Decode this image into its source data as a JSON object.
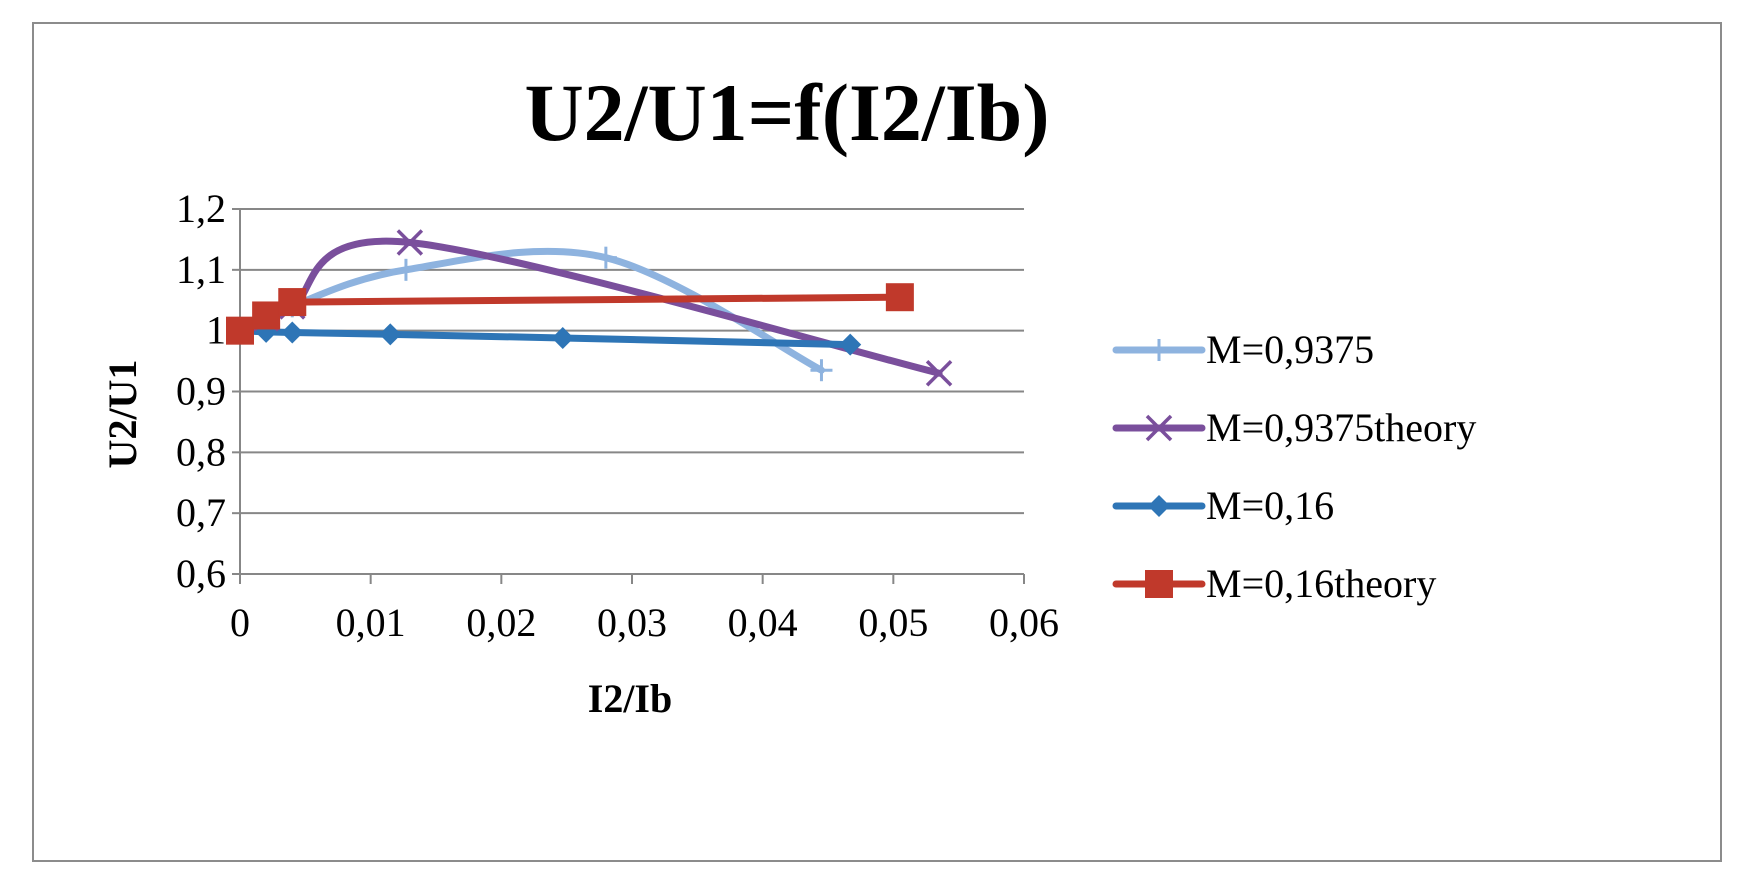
{
  "chart_data": {
    "type": "line",
    "title": "U2/U1=f(I2/Ib)",
    "xlabel": "I2/Ib",
    "ylabel": "U2/U1",
    "xlim": [
      0,
      0.06
    ],
    "ylim": [
      0.6,
      1.2
    ],
    "x_ticks": [
      "0",
      "0,01",
      "0,02",
      "0,03",
      "0,04",
      "0,05",
      "0,06"
    ],
    "y_ticks": [
      "0,6",
      "0,7",
      "0,8",
      "0,9",
      "1",
      "1,1",
      "1,2"
    ],
    "grid": true,
    "legend_position": "right",
    "series": [
      {
        "name": "M=0,9375",
        "color": "#8eb3df",
        "marker": "plus",
        "smooth": true,
        "points": [
          [
            0,
            1.0
          ],
          [
            0.002,
            1.01
          ],
          [
            0.004,
            1.04
          ],
          [
            0.0127,
            1.1
          ],
          [
            0.028,
            1.12
          ],
          [
            0.0445,
            0.935
          ]
        ]
      },
      {
        "name": "M=0,9375theory",
        "color": "#7a4f9c",
        "marker": "x",
        "smooth": true,
        "points": [
          [
            0,
            1.0
          ],
          [
            0.002,
            1.02
          ],
          [
            0.004,
            1.04
          ],
          [
            0.013,
            1.145
          ],
          [
            0.0535,
            0.93
          ]
        ]
      },
      {
        "name": "M=0,16",
        "color": "#2e75b6",
        "marker": "diamond",
        "smooth": false,
        "points": [
          [
            0,
            1.0
          ],
          [
            0.002,
            0.998
          ],
          [
            0.004,
            0.997
          ],
          [
            0.0115,
            0.994
          ],
          [
            0.0247,
            0.988
          ],
          [
            0.0467,
            0.977
          ]
        ]
      },
      {
        "name": "M=0,16theory",
        "color": "#c0392b",
        "marker": "square",
        "smooth": false,
        "points": [
          [
            0,
            1.0
          ],
          [
            0.002,
            1.025
          ],
          [
            0.004,
            1.047
          ],
          [
            0.0505,
            1.055
          ]
        ]
      }
    ]
  }
}
